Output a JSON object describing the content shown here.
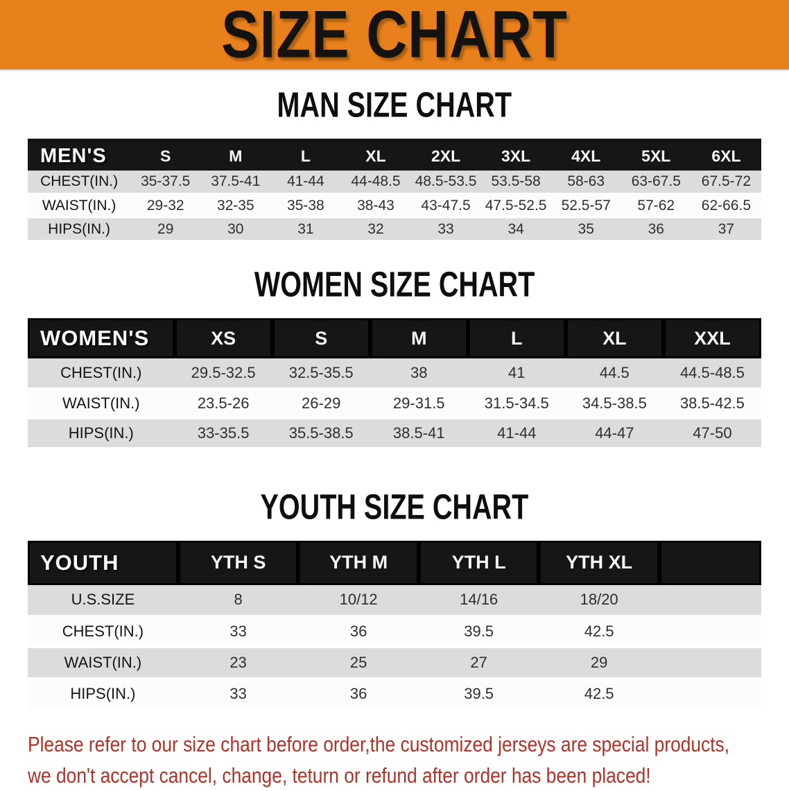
{
  "banner": {
    "title": "SIZE CHART",
    "background_color": "#E8811C",
    "text_color": "#151310"
  },
  "sections": [
    {
      "heading": "MAN SIZE CHART",
      "table": {
        "header_label": "MEN'S",
        "columns": [
          "S",
          "M",
          "L",
          "XL",
          "2XL",
          "3XL",
          "4XL",
          "5XL",
          "6XL"
        ],
        "rows": [
          {
            "label": "CHEST(IN.)",
            "values": [
              "35-37.5",
              "37.5-41",
              "41-44",
              "44-48.5",
              "48.5-53.5",
              "53.5-58",
              "58-63",
              "63-67.5",
              "67.5-72"
            ]
          },
          {
            "label": "WAIST(IN.)",
            "values": [
              "29-32",
              "32-35",
              "35-38",
              "38-43",
              "43-47.5",
              "47.5-52.5",
              "52.5-57",
              "57-62",
              "62-66.5"
            ]
          },
          {
            "label": "HIPS(IN.)",
            "values": [
              "29",
              "30",
              "31",
              "32",
              "33",
              "34",
              "35",
              "36",
              "37"
            ]
          }
        ]
      }
    },
    {
      "heading": "WOMEN SIZE CHART",
      "table": {
        "header_label": "WOMEN'S",
        "columns": [
          "XS",
          "S",
          "M",
          "L",
          "XL",
          "XXL"
        ],
        "rows": [
          {
            "label": "CHEST(IN.)",
            "values": [
              "29.5-32.5",
              "32.5-35.5",
              "38",
              "41",
              "44.5",
              "44.5-48.5"
            ]
          },
          {
            "label": "WAIST(IN.)",
            "values": [
              "23.5-26",
              "26-29",
              "29-31.5",
              "31.5-34.5",
              "34.5-38.5",
              "38.5-42.5"
            ]
          },
          {
            "label": "HIPS(IN.)",
            "values": [
              "33-35.5",
              "35.5-38.5",
              "38.5-41",
              "41-44",
              "44-47",
              "47-50"
            ]
          }
        ]
      }
    },
    {
      "heading": "YOUTH SIZE CHART",
      "table": {
        "header_label": "YOUTH",
        "columns": [
          "YTH S",
          "YTH M",
          "YTH L",
          "YTH XL"
        ],
        "rows": [
          {
            "label": "U.S.SIZE",
            "values": [
              "8",
              "10/12",
              "14/16",
              "18/20"
            ]
          },
          {
            "label": "CHEST(IN.)",
            "values": [
              "33",
              "36",
              "39.5",
              "42.5"
            ]
          },
          {
            "label": "WAIST(IN.)",
            "values": [
              "23",
              "25",
              "27",
              "29"
            ]
          },
          {
            "label": "HIPS(IN.)",
            "values": [
              "33",
              "36",
              "39.5",
              "42.5"
            ]
          }
        ]
      }
    }
  ],
  "footer": {
    "line1": "Please refer to our size chart before order,the customized jerseys are special products,",
    "line2": "we don't accept cancel, change, teturn or refund after order has been placed!",
    "text_color": "#B03228"
  }
}
